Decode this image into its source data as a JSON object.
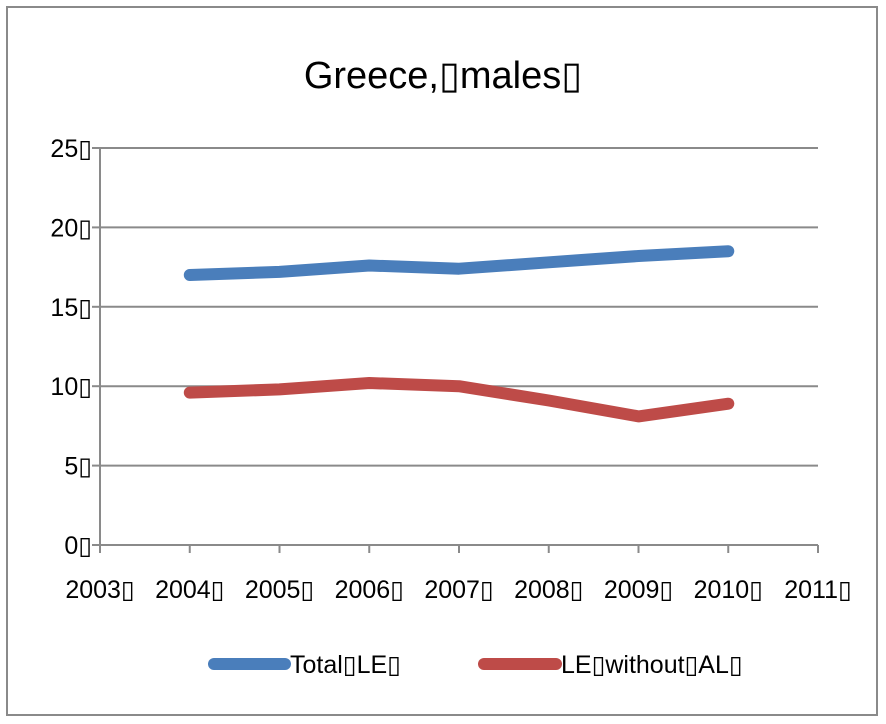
{
  "chart_data": {
    "type": "line",
    "title": "Greece,▯males▯",
    "xlabel": "",
    "ylabel": "",
    "x": [
      2003,
      2004,
      2005,
      2006,
      2007,
      2008,
      2009,
      2010,
      2011
    ],
    "x_tick_labels": [
      "2003▯",
      "2004▯",
      "2005▯",
      "2006▯",
      "2007▯",
      "2008▯",
      "2009▯",
      "2010▯",
      "2011▯"
    ],
    "xlim": [
      2003,
      2011
    ],
    "ylim": [
      0,
      25
    ],
    "y_ticks": [
      0,
      5,
      10,
      15,
      20,
      25
    ],
    "y_tick_labels": [
      "0▯",
      "5▯",
      "10▯",
      "15▯",
      "20▯",
      "25▯"
    ],
    "grid": true,
    "legend_position": "bottom",
    "series": [
      {
        "name": "Total▯LE▯",
        "color": "#4a7ebb",
        "x": [
          2004,
          2005,
          2006,
          2007,
          2008,
          2009,
          2010
        ],
        "values": [
          17.0,
          17.2,
          17.6,
          17.4,
          17.8,
          18.2,
          18.5
        ]
      },
      {
        "name": "LE▯without▯AL▯",
        "color": "#be4b48",
        "x": [
          2004,
          2005,
          2006,
          2007,
          2008,
          2009,
          2010
        ],
        "values": [
          9.6,
          9.8,
          10.2,
          10.0,
          9.1,
          8.1,
          8.9
        ]
      }
    ]
  }
}
